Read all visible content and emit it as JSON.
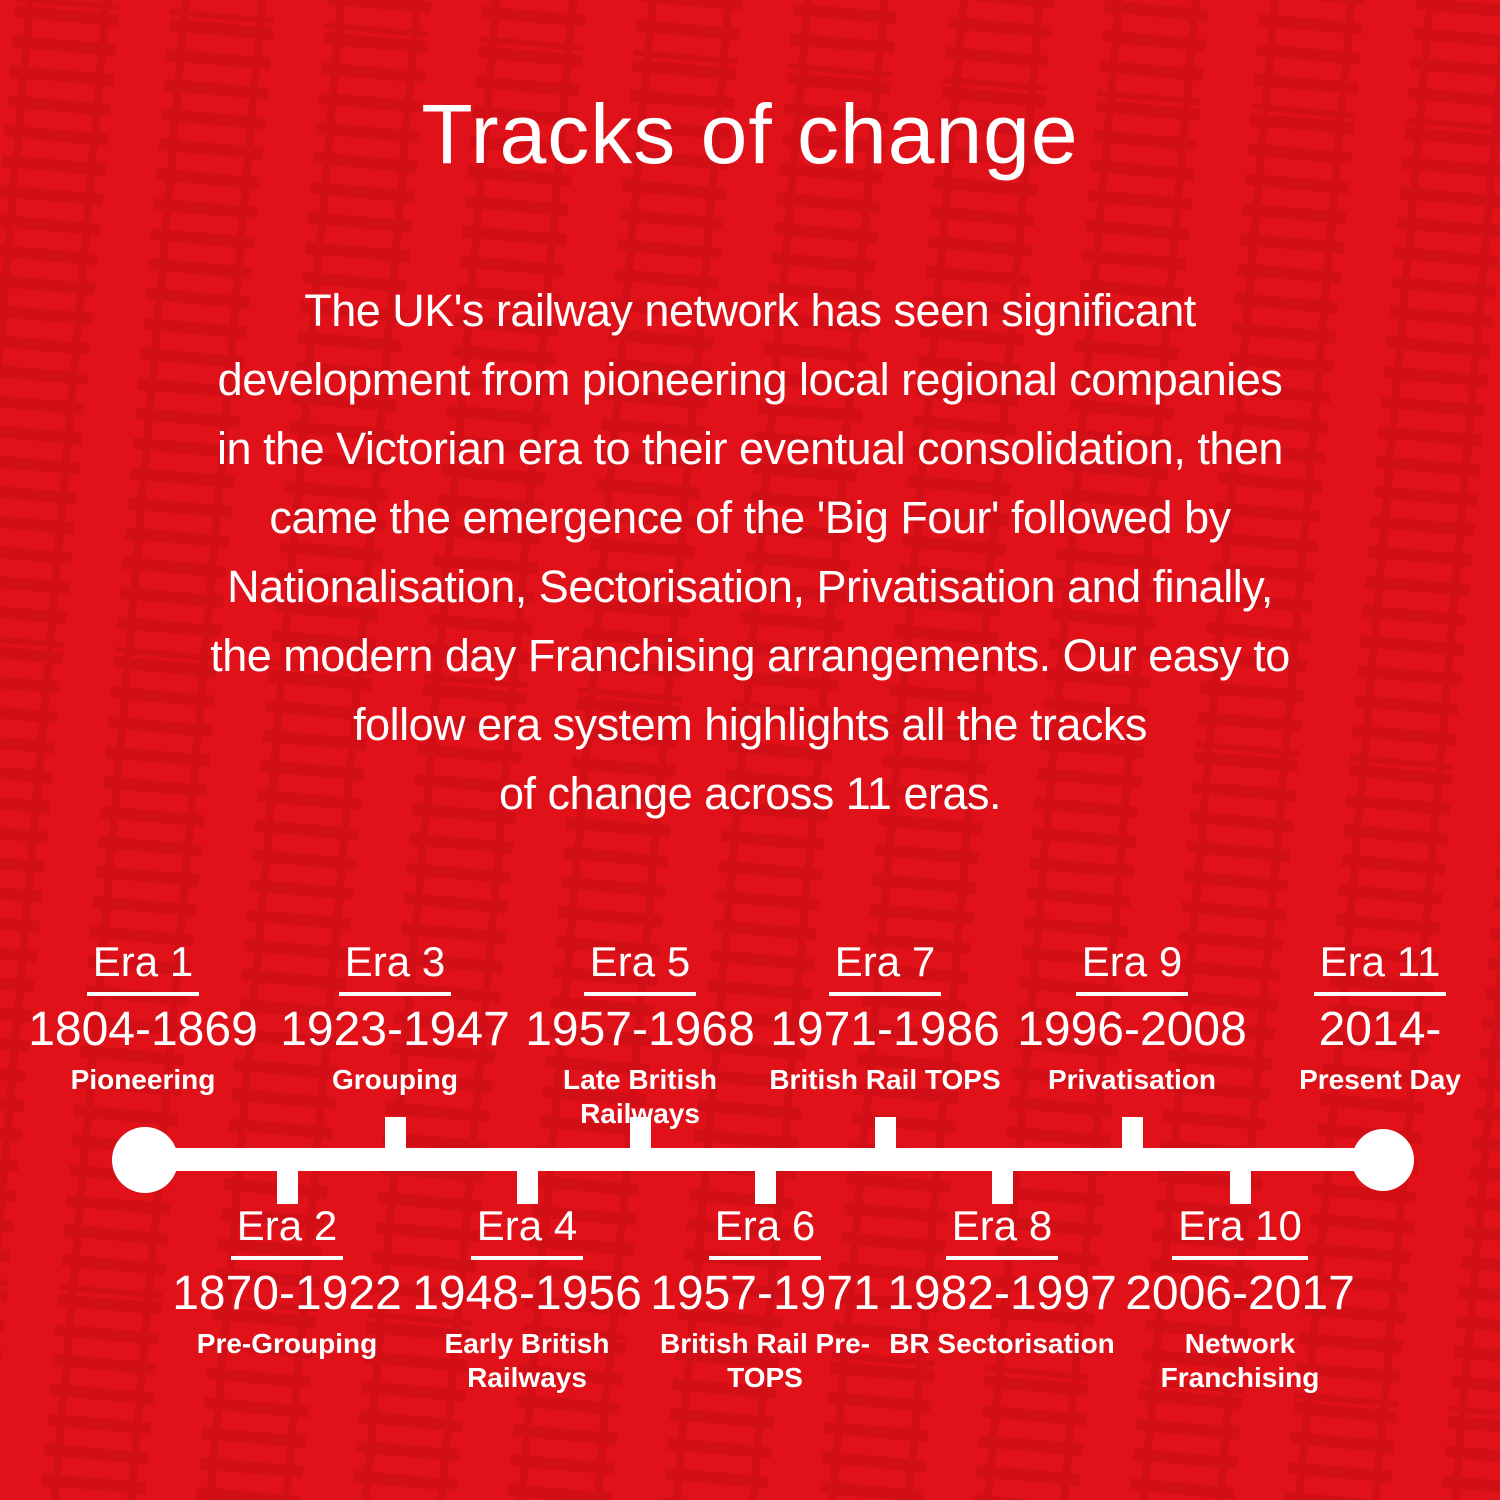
{
  "header": {
    "title": "Tracks of change"
  },
  "intro": {
    "lines": [
      "The UK's railway network has seen significant",
      "development from pioneering local regional companies",
      "in the Victorian era to their eventual consolidation, then",
      "came the emergence of the 'Big Four' followed by",
      "Nationalisation, Sectorisation, Privatisation and finally,",
      "the modern day Franchising arrangements. Our easy to",
      "follow era system highlights all the tracks",
      "of change across 11 eras."
    ]
  },
  "timeline": {
    "era_count": 11,
    "top_eras": [
      {
        "name": "Era 1",
        "years": "1804-1869",
        "label": "Pioneering"
      },
      {
        "name": "Era 3",
        "years": "1923-1947",
        "label": "Grouping"
      },
      {
        "name": "Era 5",
        "years": "1957-1968",
        "label": "Late British Railways"
      },
      {
        "name": "Era 7",
        "years": "1971-1986",
        "label": "British Rail TOPS"
      },
      {
        "name": "Era 9",
        "years": "1996-2008",
        "label": "Privatisation"
      },
      {
        "name": "Era 11",
        "years": "2014-",
        "label": "Present Day"
      }
    ],
    "bottom_eras": [
      {
        "name": "Era 2",
        "years": "1870-1922",
        "label": "Pre-Grouping"
      },
      {
        "name": "Era 4",
        "years": "1948-1956",
        "label": "Early British Railways"
      },
      {
        "name": "Era 6",
        "years": "1957-1971",
        "label": "British Rail Pre-TOPS"
      },
      {
        "name": "Era 8",
        "years": "1982-1997",
        "label": "BR Sectorisation"
      },
      {
        "name": "Era 10",
        "years": "2006-2017",
        "label": "Network Franchising"
      }
    ]
  },
  "colors": {
    "background": "#e01118",
    "track_pattern": "#c70d14",
    "text": "#ffffff"
  }
}
